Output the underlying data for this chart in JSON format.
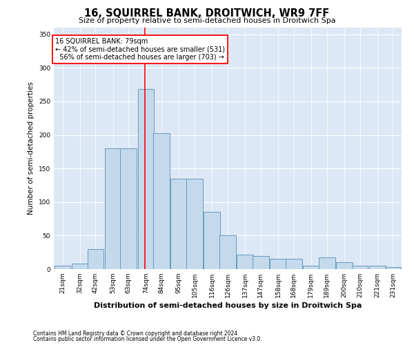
{
  "title": "16, SQUIRREL BANK, DROITWICH, WR9 7FF",
  "subtitle": "Size of property relative to semi-detached houses in Droitwich Spa",
  "xlabel": "Distribution of semi-detached houses by size in Droitwich Spa",
  "ylabel": "Number of semi-detached properties",
  "footer1": "Contains HM Land Registry data © Crown copyright and database right 2024.",
  "footer2": "Contains public sector information licensed under the Open Government Licence v3.0.",
  "property_size": 79,
  "pct_smaller": 42,
  "pct_larger": 56,
  "n_smaller": 531,
  "n_larger": 703,
  "bin_labels": [
    "21sqm",
    "32sqm",
    "42sqm",
    "53sqm",
    "63sqm",
    "74sqm",
    "84sqm",
    "95sqm",
    "105sqm",
    "116sqm",
    "126sqm",
    "137sqm",
    "147sqm",
    "158sqm",
    "168sqm",
    "179sqm",
    "189sqm",
    "200sqm",
    "210sqm",
    "221sqm",
    "231sqm"
  ],
  "bin_left_edges": [
    21,
    32,
    42,
    53,
    63,
    74,
    84,
    95,
    105,
    116,
    126,
    137,
    147,
    158,
    168,
    179,
    189,
    200,
    210,
    221,
    231
  ],
  "bin_width": 11,
  "bar_heights": [
    5,
    8,
    30,
    180,
    180,
    268,
    203,
    135,
    135,
    85,
    50,
    22,
    20,
    15,
    15,
    5,
    18,
    10,
    5,
    5,
    3
  ],
  "bar_color": "#c5d9ed",
  "bar_edge_color": "#6699bb",
  "bg_color": "#dce8f5",
  "ylim": [
    0,
    360
  ],
  "yticks": [
    0,
    50,
    100,
    150,
    200,
    250,
    300,
    350
  ],
  "title_fontsize": 10.5,
  "subtitle_fontsize": 8,
  "ylabel_fontsize": 7.5,
  "xlabel_fontsize": 8,
  "tick_fontsize": 6.5,
  "ann_fontsize": 7,
  "footer_fontsize": 5.5
}
